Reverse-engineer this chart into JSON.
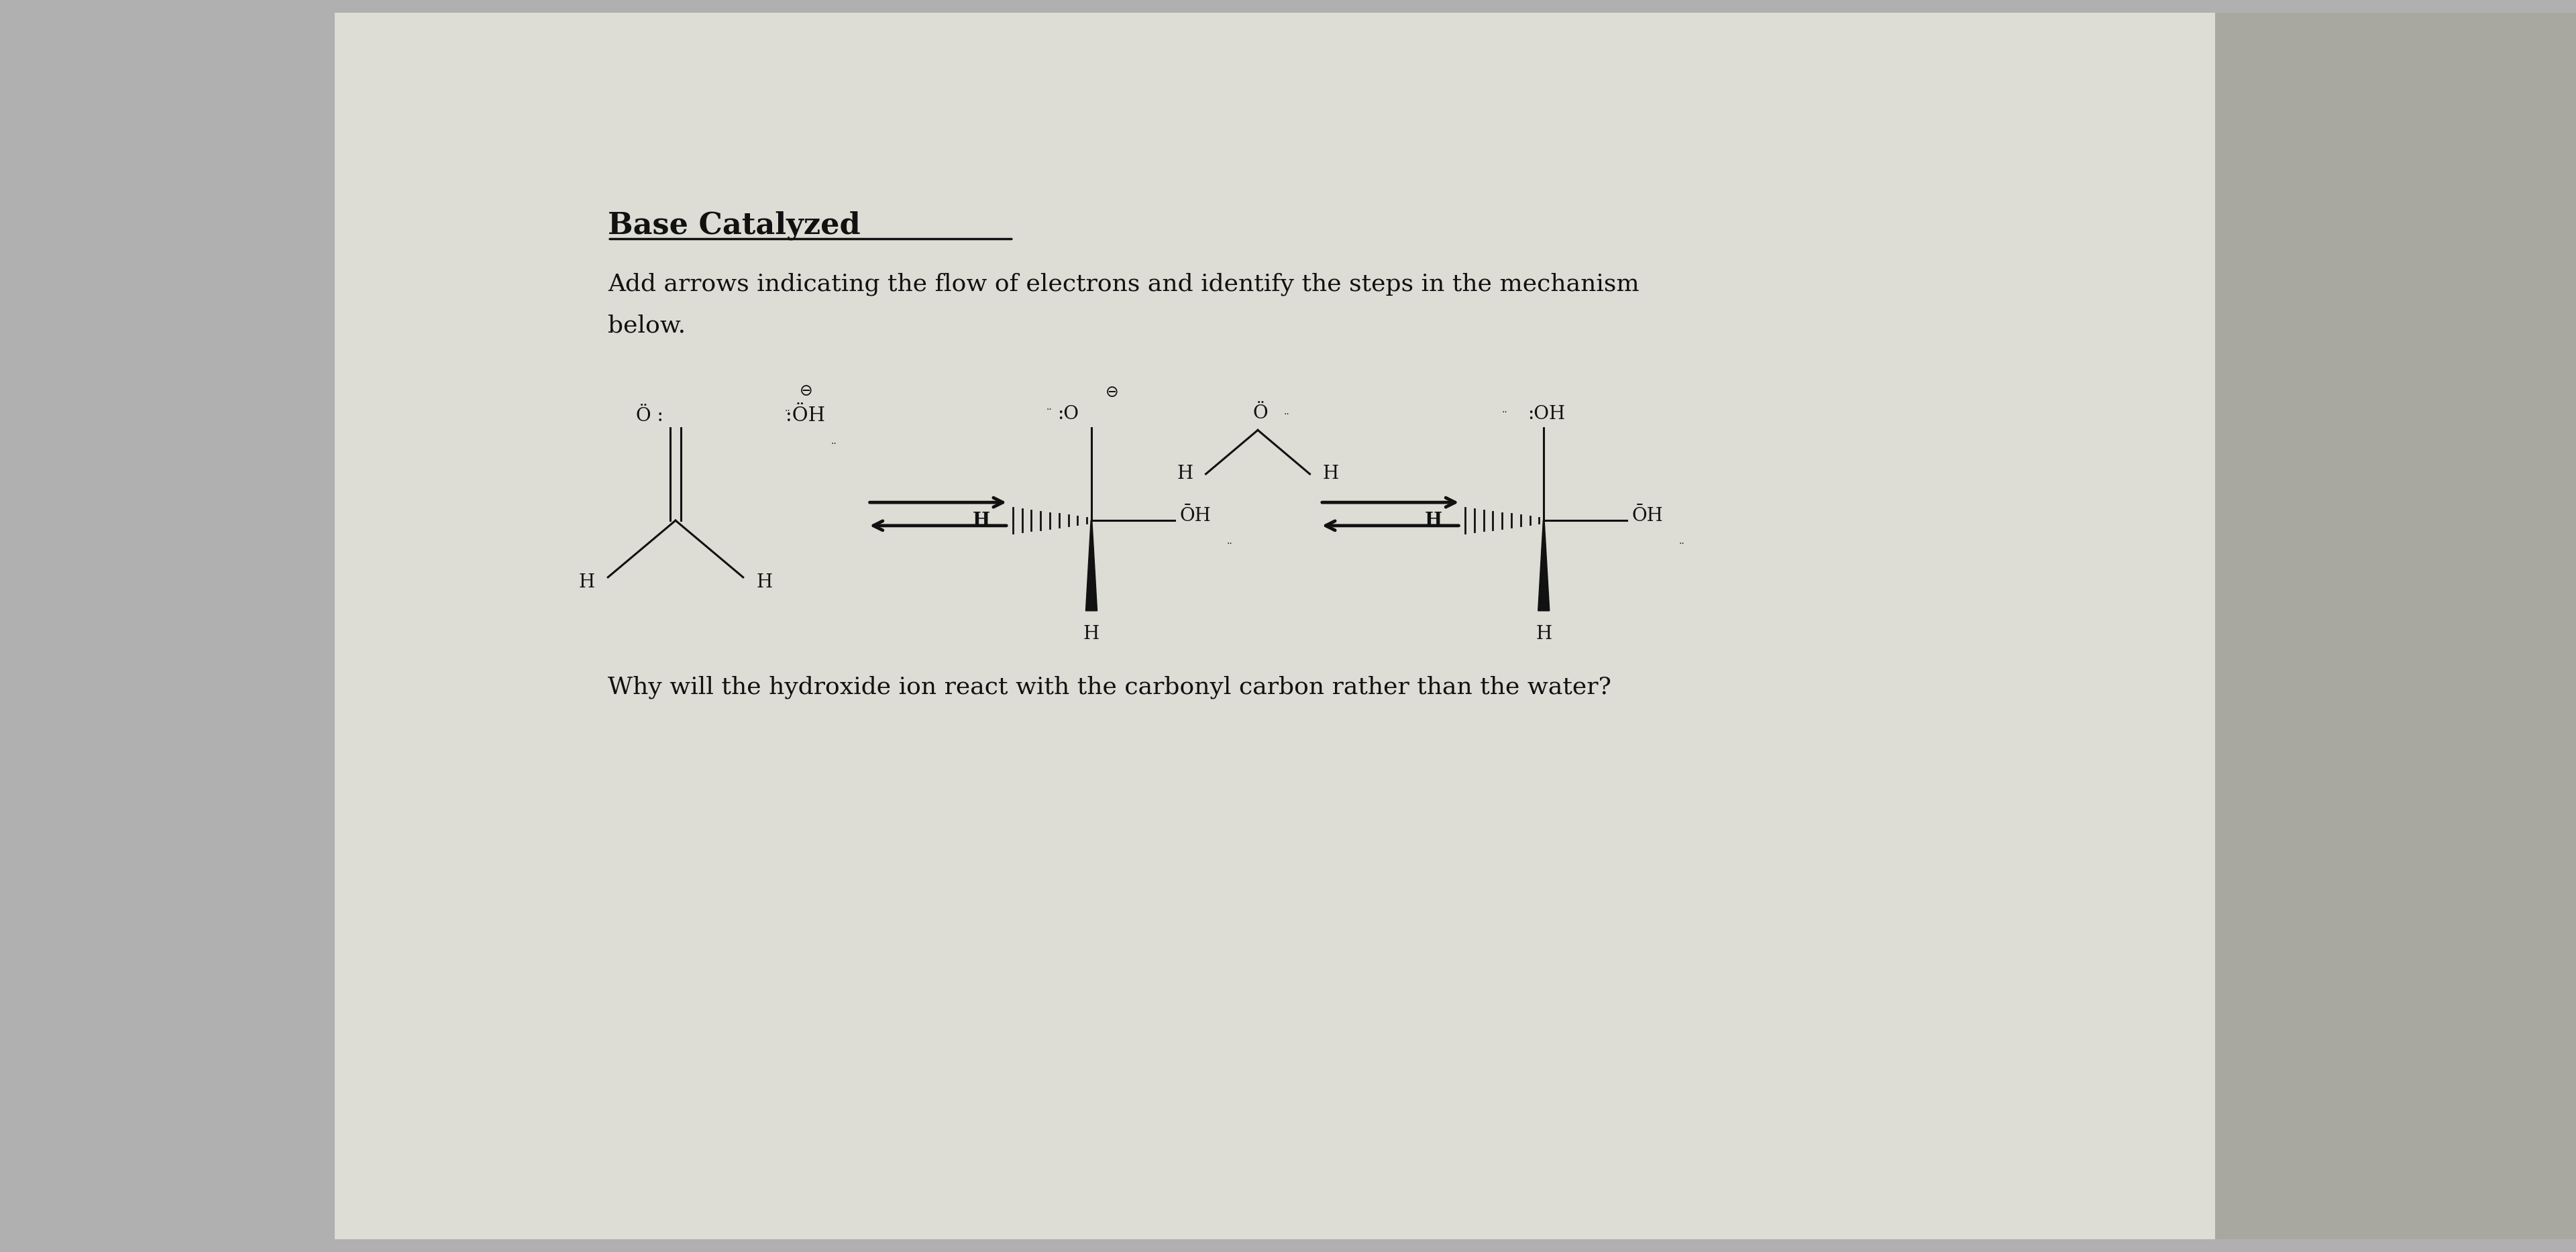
{
  "title": "Base Catalyzed",
  "subtitle_line1": "Add arrows indicating the flow of electrons and identify the steps in the mechanism",
  "subtitle_line2": "below.",
  "question": "Why will the hydroxide ion react with the carbonyl carbon rather than the water?",
  "bg_left_color": "#b0b0b0",
  "bg_right_color": "#c0c0c0",
  "paper_color": "#ddddd5",
  "text_color": "#111111",
  "title_fontsize": 32,
  "subtitle_fontsize": 26,
  "question_fontsize": 26,
  "chem_fontsize": 20,
  "sup_fontsize": 14
}
